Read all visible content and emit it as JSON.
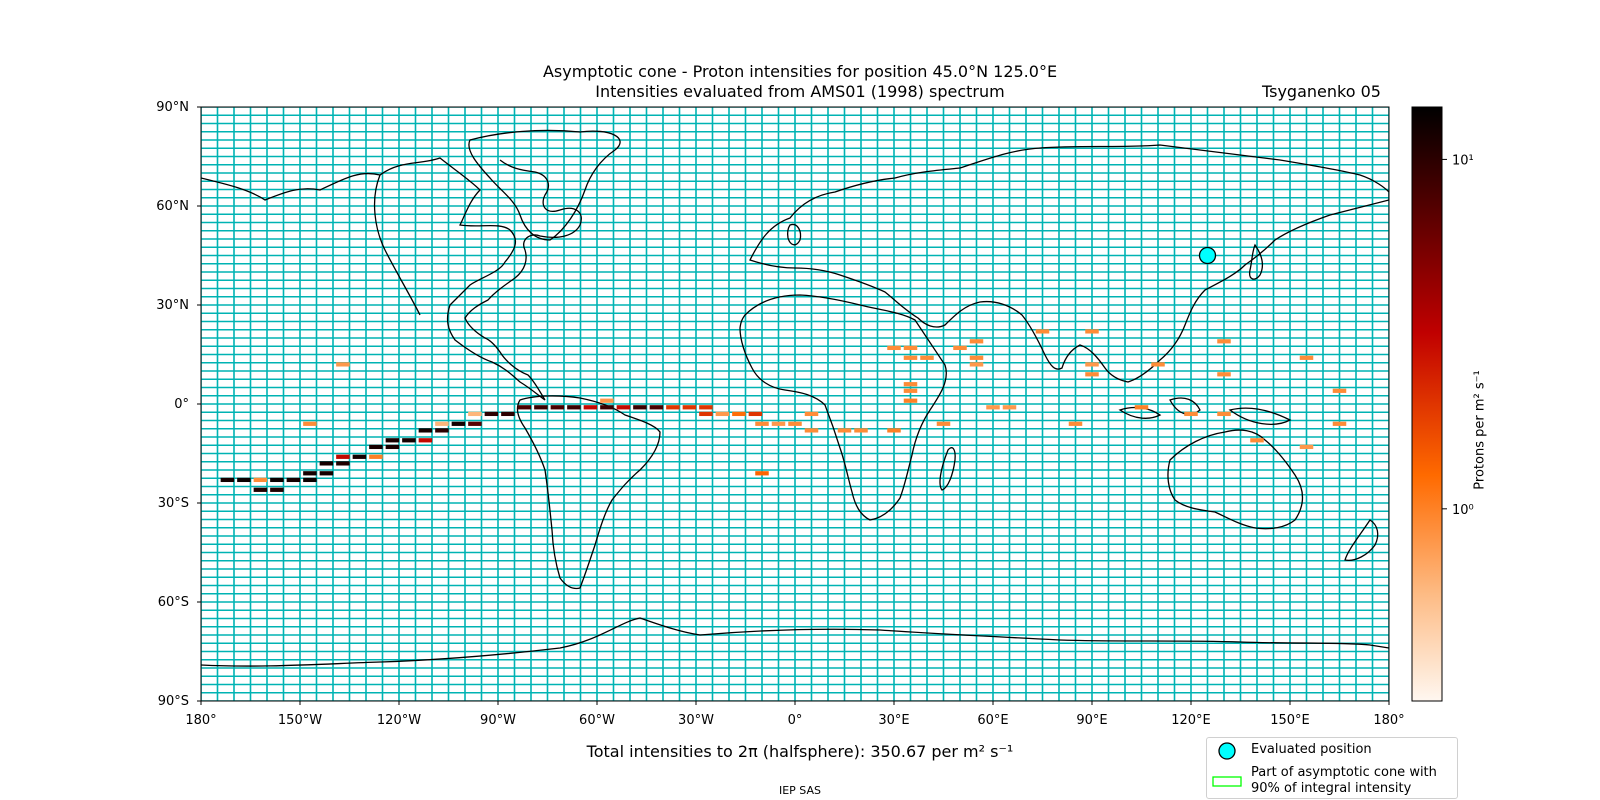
{
  "title": "Asymptotic cone - Proton intensities for position 45.0°N 125.0°E",
  "subtitle": "Intensities evaluated from AMS01 (1998) spectrum",
  "model": "Tsyganenko 05",
  "footer_text": "Total intensities to 2π (halfsphere): 350.67 per m² s⁻¹",
  "credit": "IEP SAS",
  "colorbar": {
    "label": "Protons per m² s⁻¹",
    "ticks": [
      "10¹",
      "10⁰"
    ],
    "tick_values": [
      10,
      1
    ],
    "range_log": [
      -0.55,
      1.15
    ]
  },
  "legend": {
    "marker_label": "Evaluated position",
    "cone_label_1": "Part of asymptotic cone with",
    "cone_label_2": "90% of integral intensity"
  },
  "colors": {
    "grid": "#00b3b3",
    "marker": "#00ffff",
    "cone_outline": "#00ff00"
  },
  "axes": {
    "lat_ticks": [
      "90°N",
      "60°N",
      "30°N",
      "0°",
      "30°S",
      "60°S",
      "90°S"
    ],
    "lon_ticks": [
      "180°",
      "150°W",
      "120°W",
      "90°W",
      "60°W",
      "30°W",
      "0°",
      "30°E",
      "60°E",
      "90°E",
      "120°E",
      "150°E",
      "180°"
    ]
  },
  "evaluated_position": {
    "lat": 45.0,
    "lon": 125.0
  },
  "cells": [
    {
      "lon": -172,
      "lat": -23,
      "v": 12
    },
    {
      "lon": -167,
      "lat": -23,
      "v": 13
    },
    {
      "lon": -162,
      "lat": -23,
      "v": 0.9
    },
    {
      "lon": -157,
      "lat": -23,
      "v": 13
    },
    {
      "lon": -152,
      "lat": -23,
      "v": 12
    },
    {
      "lon": -147,
      "lat": -23,
      "v": 13
    },
    {
      "lon": -162,
      "lat": -26,
      "v": 11
    },
    {
      "lon": -157,
      "lat": -26,
      "v": 11
    },
    {
      "lon": -147,
      "lat": -21,
      "v": 12
    },
    {
      "lon": -142,
      "lat": -21,
      "v": 12
    },
    {
      "lon": -142,
      "lat": -18,
      "v": 12
    },
    {
      "lon": -137,
      "lat": -18,
      "v": 11
    },
    {
      "lon": -137,
      "lat": -16,
      "v": 3
    },
    {
      "lon": -132,
      "lat": -16,
      "v": 12
    },
    {
      "lon": -127,
      "lat": -16,
      "v": 1
    },
    {
      "lon": -127,
      "lat": -13,
      "v": 12
    },
    {
      "lon": -122,
      "lat": -13,
      "v": 12
    },
    {
      "lon": -122,
      "lat": -11,
      "v": 12
    },
    {
      "lon": -117,
      "lat": -11,
      "v": 12
    },
    {
      "lon": -112,
      "lat": -11,
      "v": 3
    },
    {
      "lon": -112,
      "lat": -8,
      "v": 12
    },
    {
      "lon": -107,
      "lat": -8,
      "v": 10
    },
    {
      "lon": -107,
      "lat": -6,
      "v": 0.6
    },
    {
      "lon": -102,
      "lat": -6,
      "v": 12
    },
    {
      "lon": -97,
      "lat": -6,
      "v": 7
    },
    {
      "lon": -97,
      "lat": -3,
      "v": 0.6
    },
    {
      "lon": -92,
      "lat": -3,
      "v": 10
    },
    {
      "lon": -87,
      "lat": -3,
      "v": 10
    },
    {
      "lon": -82,
      "lat": -1,
      "v": 8
    },
    {
      "lon": -77,
      "lat": -1,
      "v": 9
    },
    {
      "lon": -72,
      "lat": -1,
      "v": 8
    },
    {
      "lon": -67,
      "lat": -1,
      "v": 9
    },
    {
      "lon": -62,
      "lat": -1,
      "v": 3
    },
    {
      "lon": -57,
      "lat": -1,
      "v": 9
    },
    {
      "lon": -52,
      "lat": -1,
      "v": 3
    },
    {
      "lon": -47,
      "lat": -1,
      "v": 9
    },
    {
      "lon": -42,
      "lat": -1,
      "v": 8
    },
    {
      "lon": -37,
      "lat": -1,
      "v": 2
    },
    {
      "lon": -32,
      "lat": -1,
      "v": 2
    },
    {
      "lon": -27,
      "lat": -1,
      "v": 2
    },
    {
      "lon": -27,
      "lat": -3,
      "v": 2
    },
    {
      "lon": -22,
      "lat": -3,
      "v": 0.8
    },
    {
      "lon": -17,
      "lat": -3,
      "v": 1.2
    },
    {
      "lon": -12,
      "lat": -3,
      "v": 2
    },
    {
      "lon": -57,
      "lat": 1,
      "v": 0.8
    },
    {
      "lon": -147,
      "lat": -6,
      "v": 0.9
    },
    {
      "lon": -137,
      "lat": 12,
      "v": 0.8
    },
    {
      "lon": -10,
      "lat": -21,
      "v": 1.3
    },
    {
      "lon": -10,
      "lat": -6,
      "v": 0.9
    },
    {
      "lon": -5,
      "lat": -6,
      "v": 0.8
    },
    {
      "lon": 0,
      "lat": -6,
      "v": 0.9
    },
    {
      "lon": 5,
      "lat": -3,
      "v": 0.9
    },
    {
      "lon": 5,
      "lat": -8,
      "v": 0.9
    },
    {
      "lon": 15,
      "lat": -8,
      "v": 0.9
    },
    {
      "lon": 20,
      "lat": -8,
      "v": 0.9
    },
    {
      "lon": 30,
      "lat": -8,
      "v": 1
    },
    {
      "lon": 30,
      "lat": 17,
      "v": 0.9
    },
    {
      "lon": 35,
      "lat": 17,
      "v": 0.9
    },
    {
      "lon": 35,
      "lat": 14,
      "v": 0.9
    },
    {
      "lon": 40,
      "lat": 14,
      "v": 0.9
    },
    {
      "lon": 35,
      "lat": 6,
      "v": 0.9
    },
    {
      "lon": 35,
      "lat": 4,
      "v": 0.9
    },
    {
      "lon": 35,
      "lat": 1,
      "v": 1
    },
    {
      "lon": 50,
      "lat": 17,
      "v": 0.9
    },
    {
      "lon": 55,
      "lat": 19,
      "v": 0.9
    },
    {
      "lon": 55,
      "lat": 14,
      "v": 0.9
    },
    {
      "lon": 55,
      "lat": 12,
      "v": 0.8
    },
    {
      "lon": 45,
      "lat": -6,
      "v": 0.9
    },
    {
      "lon": 60,
      "lat": -1,
      "v": 0.8
    },
    {
      "lon": 65,
      "lat": -1,
      "v": 0.8
    },
    {
      "lon": 75,
      "lat": 22,
      "v": 0.9
    },
    {
      "lon": 90,
      "lat": 22,
      "v": 0.9
    },
    {
      "lon": 85,
      "lat": -6,
      "v": 0.9
    },
    {
      "lon": 90,
      "lat": 12,
      "v": 0.8
    },
    {
      "lon": 90,
      "lat": 9,
      "v": 0.9
    },
    {
      "lon": 110,
      "lat": 12,
      "v": 0.9
    },
    {
      "lon": 105,
      "lat": -1,
      "v": 1
    },
    {
      "lon": 120,
      "lat": -3,
      "v": 0.9
    },
    {
      "lon": 130,
      "lat": 19,
      "v": 0.9
    },
    {
      "lon": 130,
      "lat": 9,
      "v": 0.9
    },
    {
      "lon": 130,
      "lat": -3,
      "v": 0.9
    },
    {
      "lon": 140,
      "lat": -11,
      "v": 0.9
    },
    {
      "lon": 155,
      "lat": 14,
      "v": 0.9
    },
    {
      "lon": 155,
      "lat": -13,
      "v": 0.8
    },
    {
      "lon": 165,
      "lat": 4,
      "v": 0.9
    },
    {
      "lon": 165,
      "lat": -6,
      "v": 0.9
    }
  ]
}
